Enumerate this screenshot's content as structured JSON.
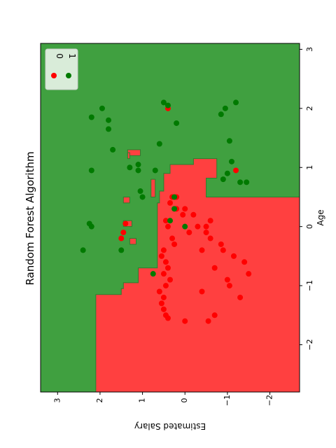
{
  "chart_data": {
    "type": "scatter",
    "title": "Random Forest Algorithm",
    "xlabel": "Age",
    "ylabel": "Estimated Salary",
    "xlim": [
      -2.8,
      3.1
    ],
    "ylim": [
      -2.7,
      3.4
    ],
    "xticks": [
      -2,
      -1,
      0,
      1,
      2,
      3
    ],
    "yticks": [
      -2,
      -1,
      0,
      1,
      2,
      3
    ],
    "xtick_labels": [
      "−2",
      "−1",
      "0",
      "1",
      "2",
      "3"
    ],
    "ytick_labels": [
      "−2",
      "−1",
      "0",
      "1",
      "2",
      "3"
    ],
    "grid": false,
    "legend_position": "top-right",
    "colors": {
      "class0_region": "#ff4040",
      "class1_region": "#40a040",
      "class0_point": "#ff0000",
      "class1_point": "#007a00"
    },
    "regions": {
      "class0_polygon": [
        [
          -2.8,
          -2.7
        ],
        [
          0.5,
          -2.7
        ],
        [
          0.5,
          -0.5
        ],
        [
          0.82,
          -0.5
        ],
        [
          0.82,
          -0.75
        ],
        [
          1.15,
          -0.75
        ],
        [
          1.15,
          -0.2
        ],
        [
          1.05,
          -0.2
        ],
        [
          1.05,
          0.35
        ],
        [
          0.9,
          0.35
        ],
        [
          0.9,
          0.5
        ],
        [
          0.6,
          0.5
        ],
        [
          0.6,
          0.6
        ],
        [
          0.4,
          0.6
        ],
        [
          0.4,
          0.65
        ],
        [
          -0.7,
          0.65
        ],
        [
          -0.7,
          1.1
        ],
        [
          -0.95,
          1.1
        ],
        [
          -0.95,
          1.45
        ],
        [
          -1.05,
          1.45
        ],
        [
          -1.05,
          1.5
        ],
        [
          -1.15,
          1.5
        ],
        [
          -1.15,
          2.1
        ],
        [
          -2.8,
          2.1
        ]
      ],
      "class0_islands": [
        [
          [
            1.2,
            1.05
          ],
          [
            1.3,
            1.05
          ],
          [
            1.3,
            1.35
          ],
          [
            1.2,
            1.35
          ]
        ],
        [
          [
            1.15,
            1.3
          ],
          [
            1.25,
            1.3
          ],
          [
            1.25,
            1.35
          ],
          [
            1.15,
            1.35
          ]
        ],
        [
          [
            0.5,
            0.7
          ],
          [
            0.8,
            0.7
          ],
          [
            0.8,
            0.8
          ],
          [
            0.5,
            0.8
          ]
        ],
        [
          [
            0.4,
            1.3
          ],
          [
            0.5,
            1.3
          ],
          [
            0.5,
            1.45
          ],
          [
            0.4,
            1.45
          ]
        ],
        [
          [
            0.0,
            1.25
          ],
          [
            0.1,
            1.25
          ],
          [
            0.1,
            1.45
          ],
          [
            0.0,
            1.45
          ]
        ],
        [
          [
            -0.3,
            1.15
          ],
          [
            -0.2,
            1.15
          ],
          [
            -0.2,
            1.3
          ],
          [
            -0.3,
            1.3
          ]
        ]
      ]
    },
    "series": [
      {
        "name": "0",
        "points": [
          [
            -1.6,
            0.0
          ],
          [
            -1.55,
            0.4
          ],
          [
            -1.5,
            0.45
          ],
          [
            -1.4,
            0.5
          ],
          [
            -1.3,
            0.55
          ],
          [
            -1.2,
            0.5
          ],
          [
            -1.1,
            0.6
          ],
          [
            -1.0,
            0.45
          ],
          [
            -0.9,
            0.35
          ],
          [
            -0.8,
            0.5
          ],
          [
            -0.7,
            0.4
          ],
          [
            -0.6,
            0.45
          ],
          [
            -0.5,
            0.55
          ],
          [
            -0.4,
            0.5
          ],
          [
            -0.3,
            0.25
          ],
          [
            -0.2,
            0.3
          ],
          [
            0.0,
            0.4
          ],
          [
            0.1,
            0.45
          ],
          [
            0.2,
            0.05
          ],
          [
            0.3,
            0.2
          ],
          [
            0.4,
            0.35
          ],
          [
            0.5,
            0.3
          ],
          [
            -0.1,
            1.45
          ],
          [
            -0.2,
            1.5
          ],
          [
            0.05,
            1.4
          ],
          [
            0.1,
            -0.6
          ],
          [
            0.0,
            -0.3
          ],
          [
            -0.1,
            -0.5
          ],
          [
            -0.2,
            -0.6
          ],
          [
            -0.3,
            -0.85
          ],
          [
            -0.5,
            -1.15
          ],
          [
            -0.6,
            -1.4
          ],
          [
            -0.8,
            -1.5
          ],
          [
            -1.0,
            -1.05
          ],
          [
            -1.2,
            -1.3
          ],
          [
            -1.5,
            -0.7
          ],
          [
            -0.9,
            -1.0
          ],
          [
            -0.4,
            -0.4
          ],
          [
            -0.7,
            -0.7
          ],
          [
            0.3,
            0.0
          ],
          [
            0.5,
            0.2
          ],
          [
            -1.6,
            -0.55
          ],
          [
            0.95,
            -1.2
          ],
          [
            2.0,
            0.4
          ],
          [
            0.2,
            -0.2
          ],
          [
            -0.1,
            -0.1
          ],
          [
            -0.4,
            -0.9
          ],
          [
            -1.1,
            -0.4
          ],
          [
            0.0,
            -0.5
          ]
        ]
      },
      {
        "name": "1",
        "points": [
          [
            2.05,
            0.4
          ],
          [
            2.1,
            0.5
          ],
          [
            2.0,
            1.95
          ],
          [
            1.9,
            -0.85
          ],
          [
            2.0,
            -0.95
          ],
          [
            2.1,
            -1.2
          ],
          [
            1.85,
            2.2
          ],
          [
            1.8,
            1.8
          ],
          [
            1.75,
            0.2
          ],
          [
            1.65,
            1.8
          ],
          [
            1.45,
            -1.05
          ],
          [
            1.4,
            0.6
          ],
          [
            1.3,
            1.7
          ],
          [
            1.1,
            -1.1
          ],
          [
            1.05,
            1.1
          ],
          [
            0.95,
            1.1
          ],
          [
            0.95,
            2.2
          ],
          [
            0.9,
            -1.0
          ],
          [
            0.8,
            -0.9
          ],
          [
            0.75,
            -1.3
          ],
          [
            0.75,
            -1.45
          ],
          [
            0.6,
            1.05
          ],
          [
            0.5,
            1.0
          ],
          [
            0.5,
            0.25
          ],
          [
            0.3,
            0.25
          ],
          [
            0.05,
            2.25
          ],
          [
            0.0,
            2.2
          ],
          [
            -0.4,
            2.4
          ],
          [
            -0.8,
            0.75
          ],
          [
            0.95,
            0.7
          ],
          [
            0.1,
            0.35
          ],
          [
            0.0,
            0.0
          ],
          [
            -0.4,
            1.5
          ],
          [
            1.0,
            1.3
          ]
        ]
      }
    ]
  }
}
